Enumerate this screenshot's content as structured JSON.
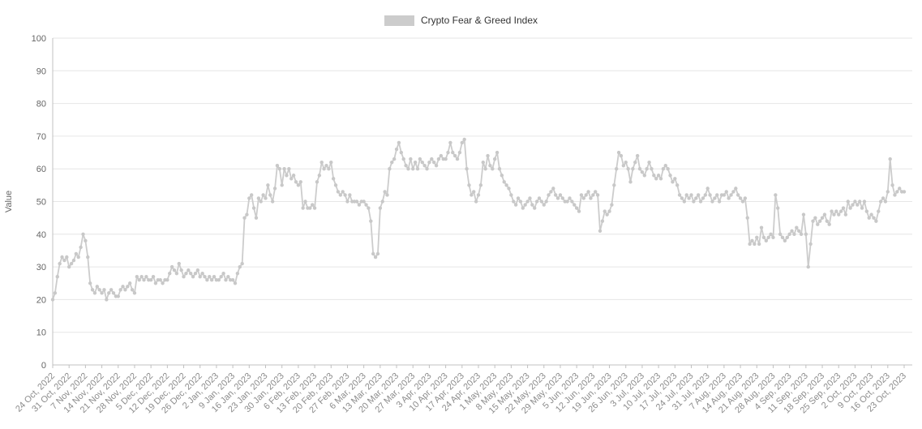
{
  "chart_data": {
    "type": "line",
    "title": "",
    "legend": {
      "label": "Crypto Fear & Greed Index",
      "position": "top-center"
    },
    "xlabel": "",
    "ylabel": "Value",
    "ylim": [
      0,
      100
    ],
    "ytick_step": 10,
    "grid": "horizontal-only",
    "points_per_tick": 7,
    "x_tick_labels": [
      "24 Oct, 2022",
      "31 Oct, 2022",
      "7 Nov, 2022",
      "14 Nov, 2022",
      "21 Nov, 2022",
      "28 Nov, 2022",
      "5 Dec, 2022",
      "12 Dec, 2022",
      "19 Dec, 2022",
      "26 Dec, 2022",
      "2 Jan, 2023",
      "9 Jan, 2023",
      "16 Jan, 2023",
      "23 Jan, 2023",
      "30 Jan, 2023",
      "6 Feb, 2023",
      "13 Feb, 2023",
      "20 Feb, 2023",
      "27 Feb, 2023",
      "6 Mar, 2023",
      "13 Mar, 2023",
      "20 Mar, 2023",
      "27 Mar, 2023",
      "3 Apr, 2023",
      "10 Apr, 2023",
      "17 Apr, 2023",
      "24 Apr, 2023",
      "1 May, 2023",
      "8 May, 2023",
      "15 May, 2023",
      "22 May, 2023",
      "29 May, 2023",
      "5 Jun, 2023",
      "12 Jun, 2023",
      "19 Jun, 2023",
      "26 Jun, 2023",
      "3 Jul, 2023",
      "10 Jul, 2023",
      "17 Jul, 2023",
      "24 Jul, 2023",
      "31 Jul, 2023",
      "7 Aug, 2023",
      "14 Aug, 2023",
      "21 Aug, 2023",
      "28 Aug, 2023",
      "4 Sep, 2023",
      "11 Sep, 2023",
      "18 Sep, 2023",
      "25 Sep, 2023",
      "2 Oct, 2023",
      "9 Oct, 2023",
      "16 Oct, 2023",
      "23 Oct, 2023"
    ],
    "series": [
      {
        "name": "Crypto Fear & Greed Index",
        "values": [
          20,
          22,
          27,
          31,
          33,
          32,
          33,
          30,
          31,
          32,
          34,
          33,
          36,
          40,
          38,
          33,
          25,
          23,
          22,
          24,
          23,
          22,
          23,
          20,
          22,
          23,
          22,
          21,
          21,
          23,
          24,
          23,
          24,
          25,
          23,
          22,
          27,
          26,
          27,
          26,
          27,
          26,
          26,
          27,
          25,
          26,
          26,
          25,
          26,
          26,
          28,
          30,
          29,
          28,
          31,
          29,
          27,
          28,
          29,
          28,
          27,
          28,
          29,
          27,
          28,
          27,
          26,
          27,
          26,
          27,
          26,
          26,
          27,
          28,
          26,
          27,
          26,
          26,
          25,
          28,
          30,
          31,
          45,
          46,
          51,
          52,
          48,
          45,
          51,
          50,
          52,
          51,
          55,
          52,
          50,
          54,
          61,
          60,
          55,
          60,
          58,
          60,
          57,
          58,
          56,
          55,
          56,
          48,
          50,
          48,
          48,
          49,
          48,
          56,
          58,
          62,
          60,
          61,
          60,
          62,
          57,
          55,
          53,
          52,
          53,
          52,
          50,
          52,
          50,
          50,
          50,
          49,
          50,
          50,
          49,
          48,
          44,
          34,
          33,
          34,
          48,
          50,
          53,
          52,
          60,
          62,
          63,
          66,
          68,
          65,
          63,
          61,
          60,
          63,
          60,
          62,
          60,
          63,
          62,
          61,
          60,
          62,
          63,
          62,
          61,
          63,
          64,
          63,
          63,
          65,
          68,
          65,
          64,
          63,
          65,
          68,
          69,
          60,
          55,
          52,
          53,
          50,
          52,
          55,
          62,
          60,
          64,
          61,
          60,
          63,
          65,
          60,
          58,
          56,
          55,
          54,
          52,
          50,
          49,
          51,
          50,
          48,
          49,
          50,
          51,
          49,
          48,
          50,
          51,
          50,
          49,
          50,
          52,
          53,
          54,
          52,
          51,
          52,
          51,
          50,
          50,
          51,
          50,
          49,
          48,
          47,
          52,
          51,
          52,
          53,
          51,
          52,
          53,
          52,
          41,
          44,
          47,
          46,
          47,
          49,
          55,
          60,
          65,
          64,
          61,
          62,
          60,
          56,
          60,
          62,
          64,
          60,
          59,
          58,
          60,
          62,
          60,
          58,
          57,
          58,
          57,
          60,
          61,
          60,
          58,
          56,
          57,
          55,
          52,
          51,
          50,
          52,
          51,
          52,
          50,
          51,
          52,
          50,
          51,
          52,
          54,
          52,
          50,
          51,
          52,
          50,
          52,
          52,
          53,
          51,
          52,
          53,
          54,
          52,
          51,
          50,
          51,
          45,
          37,
          38,
          37,
          39,
          37,
          42,
          39,
          38,
          39,
          40,
          39,
          52,
          48,
          40,
          39,
          38,
          39,
          40,
          41,
          40,
          42,
          41,
          40,
          46,
          40,
          30,
          37,
          44,
          45,
          43,
          44,
          45,
          46,
          44,
          43,
          47,
          46,
          47,
          46,
          47,
          48,
          46,
          50,
          48,
          49,
          50,
          49,
          50,
          48,
          50,
          47,
          45,
          46,
          45,
          44,
          47,
          50,
          51,
          50,
          53,
          63,
          55,
          52,
          53,
          54,
          53,
          53
        ]
      }
    ],
    "colors": {
      "series": "#cccccc",
      "marker": "#c8c8c8",
      "grid": "#e6e6e6",
      "axis": "#c0c0c0",
      "x_tick_label": "#8c8c8c",
      "y_tick_label": "#666666",
      "ylabel_text": "#666666",
      "legend_text": "#333333"
    }
  }
}
